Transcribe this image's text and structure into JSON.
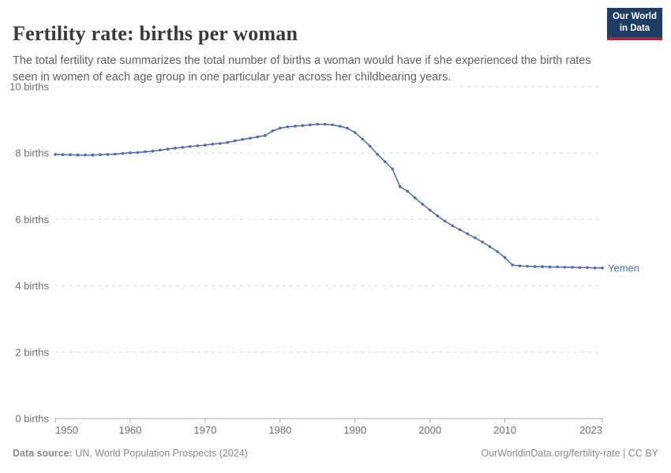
{
  "header": {
    "title": "Fertility rate: births per woman",
    "subtitle": "The total fertility rate summarizes the total number of births a woman would have if she experienced the birth rates seen in women of each age group in one particular year across her childbearing years.",
    "logo": {
      "line1": "Our World",
      "line2": "in Data",
      "bg_color": "#1d3d63",
      "stripe_color": "#a2283b"
    }
  },
  "chart_data": {
    "type": "line",
    "title": "Fertility rate: births per woman",
    "entity": "Yemen",
    "xlabel": "",
    "ylabel": "births",
    "xlim": [
      1950,
      2023
    ],
    "ylim": [
      0,
      10
    ],
    "grid": "horizontal-dashed",
    "legend_position": "end-of-line-label",
    "line_color": "#4c6ba8",
    "x_ticks": [
      {
        "value": 1950,
        "label": "1950"
      },
      {
        "value": 1960,
        "label": "1960"
      },
      {
        "value": 1970,
        "label": "1970"
      },
      {
        "value": 1980,
        "label": "1980"
      },
      {
        "value": 1990,
        "label": "1990"
      },
      {
        "value": 2000,
        "label": "2000"
      },
      {
        "value": 2010,
        "label": "2010"
      },
      {
        "value": 2023,
        "label": "2023"
      }
    ],
    "y_ticks": [
      {
        "value": 0,
        "label": "0 births"
      },
      {
        "value": 2,
        "label": "2 births"
      },
      {
        "value": 4,
        "label": "4 births"
      },
      {
        "value": 6,
        "label": "6 births"
      },
      {
        "value": 8,
        "label": "8 births"
      },
      {
        "value": 10,
        "label": "10 births"
      }
    ],
    "series": [
      {
        "name": "Yemen",
        "x": [
          1950,
          1951,
          1952,
          1953,
          1954,
          1955,
          1956,
          1957,
          1958,
          1959,
          1960,
          1961,
          1962,
          1963,
          1964,
          1965,
          1966,
          1967,
          1968,
          1969,
          1970,
          1971,
          1972,
          1973,
          1974,
          1975,
          1976,
          1977,
          1978,
          1979,
          1980,
          1981,
          1982,
          1983,
          1984,
          1985,
          1986,
          1987,
          1988,
          1989,
          1990,
          1991,
          1992,
          1993,
          1994,
          1995,
          1996,
          1997,
          1998,
          1999,
          2000,
          2001,
          2002,
          2003,
          2004,
          2005,
          2006,
          2007,
          2008,
          2009,
          2010,
          2011,
          2012,
          2013,
          2014,
          2015,
          2016,
          2017,
          2018,
          2019,
          2020,
          2021,
          2022,
          2023
        ],
        "values": [
          7.96,
          7.95,
          7.95,
          7.94,
          7.94,
          7.94,
          7.95,
          7.96,
          7.97,
          7.99,
          8.01,
          8.02,
          8.04,
          8.06,
          8.09,
          8.12,
          8.15,
          8.17,
          8.2,
          8.22,
          8.24,
          8.27,
          8.29,
          8.32,
          8.37,
          8.41,
          8.45,
          8.49,
          8.53,
          8.67,
          8.75,
          8.79,
          8.81,
          8.83,
          8.85,
          8.87,
          8.87,
          8.85,
          8.81,
          8.75,
          8.62,
          8.42,
          8.21,
          7.96,
          7.74,
          7.52,
          6.99,
          6.85,
          6.65,
          6.46,
          6.28,
          6.11,
          5.95,
          5.81,
          5.69,
          5.57,
          5.45,
          5.32,
          5.18,
          5.03,
          4.85,
          4.63,
          4.6,
          4.59,
          4.58,
          4.58,
          4.57,
          4.57,
          4.56,
          4.56,
          4.55,
          4.55,
          4.54,
          4.54
        ]
      }
    ]
  },
  "footer": {
    "source_label": "Data source:",
    "source_text": " UN, World Population Prospects (2024)",
    "right_text": "OurWorldinData.org/fertility-rate | CC BY"
  }
}
